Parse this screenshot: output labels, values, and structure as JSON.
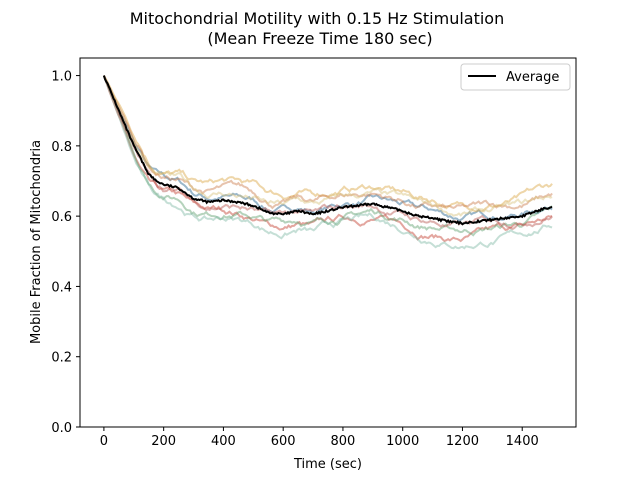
{
  "chart_data": {
    "type": "line",
    "title": "Mitochondrial Motility with 0.15 Hz Stimulation",
    "subtitle": "(Mean Freeze Time 180 sec)",
    "xlabel": "Time (sec)",
    "ylabel": "Mobile Fraction of Mitochondria",
    "xlim": [
      -80,
      1580
    ],
    "ylim": [
      0.0,
      1.05
    ],
    "xticks": [
      0,
      200,
      400,
      600,
      800,
      1000,
      1200,
      1400
    ],
    "yticks": [
      0.0,
      0.2,
      0.4,
      0.6,
      0.8,
      1.0
    ],
    "xtick_labels": [
      "0",
      "200",
      "400",
      "600",
      "800",
      "1000",
      "1200",
      "1400"
    ],
    "ytick_labels": [
      "0.0",
      "0.2",
      "0.4",
      "0.6",
      "0.8",
      "1.0"
    ],
    "grid": false,
    "legend_position": "top-right",
    "legend_entries": [
      "Average"
    ],
    "individual_trace_colors": [
      "#1f5f8b",
      "#c0392b",
      "#d9a441",
      "#5b9e6b",
      "#c97b4a",
      "#7fb7a5",
      "#d6c27a",
      "#b5534b"
    ],
    "series": [
      {
        "name": "Average",
        "color": "#000000",
        "x": [
          0,
          25,
          50,
          75,
          100,
          125,
          150,
          175,
          200,
          250,
          300,
          350,
          400,
          450,
          500,
          550,
          600,
          650,
          700,
          750,
          800,
          850,
          900,
          950,
          1000,
          1050,
          1100,
          1150,
          1200,
          1250,
          1300,
          1350,
          1400,
          1450,
          1500
        ],
        "y": [
          1.0,
          0.95,
          0.9,
          0.85,
          0.8,
          0.76,
          0.72,
          0.7,
          0.69,
          0.68,
          0.65,
          0.64,
          0.645,
          0.64,
          0.63,
          0.61,
          0.605,
          0.615,
          0.605,
          0.615,
          0.625,
          0.63,
          0.635,
          0.625,
          0.615,
          0.6,
          0.595,
          0.585,
          0.58,
          0.585,
          0.59,
          0.595,
          0.6,
          0.615,
          0.628
        ]
      }
    ]
  }
}
